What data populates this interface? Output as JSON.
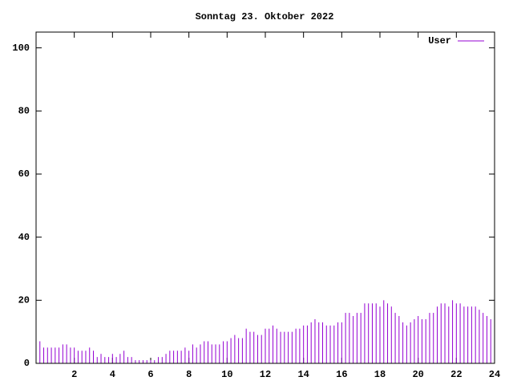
{
  "chart_data": {
    "type": "impulse",
    "title": "Sonntag 23. Oktober 2022",
    "x": [
      0,
      0.2,
      0.4,
      0.6,
      0.8,
      1,
      1.2,
      1.4,
      1.6,
      1.8,
      2,
      2.2,
      2.4,
      2.6,
      2.8,
      3,
      3.2,
      3.4,
      3.6,
      3.8,
      4,
      4.2,
      4.4,
      4.6,
      4.8,
      5,
      5.2,
      5.4,
      5.6,
      5.8,
      6,
      6.2,
      6.4,
      6.6,
      6.8,
      7,
      7.2,
      7.4,
      7.6,
      7.8,
      8,
      8.2,
      8.4,
      8.6,
      8.8,
      9,
      9.2,
      9.4,
      9.6,
      9.8,
      10,
      10.2,
      10.4,
      10.6,
      10.8,
      11,
      11.2,
      11.4,
      11.6,
      11.8,
      12,
      12.2,
      12.4,
      12.6,
      12.8,
      13,
      13.2,
      13.4,
      13.6,
      13.8,
      14,
      14.2,
      14.4,
      14.6,
      14.8,
      15,
      15.2,
      15.4,
      15.6,
      15.8,
      16,
      16.2,
      16.4,
      16.6,
      16.8,
      17,
      17.2,
      17.4,
      17.6,
      17.8,
      18,
      18.2,
      18.4,
      18.6,
      18.8,
      19,
      19.2,
      19.4,
      19.6,
      19.8,
      20,
      20.2,
      20.4,
      20.6,
      20.8,
      21,
      21.2,
      21.4,
      21.6,
      21.8,
      22,
      22.2,
      22.4,
      22.6,
      22.8,
      23,
      23.2,
      23.4,
      23.6,
      23.8
    ],
    "series": [
      {
        "name": "User",
        "color": "#9400d3",
        "values": [
          7,
          7,
          5,
          5,
          5,
          5,
          5,
          6,
          6,
          5,
          5,
          4,
          4,
          4,
          5,
          4,
          2,
          3,
          2,
          2,
          3,
          2,
          3,
          4,
          2,
          2,
          1,
          1,
          1,
          1,
          1,
          1,
          2,
          2,
          3,
          4,
          4,
          4,
          4,
          5,
          4,
          6,
          5,
          6,
          7,
          7,
          6,
          6,
          6,
          7,
          7,
          8,
          9,
          8,
          8,
          11,
          10,
          10,
          9,
          9,
          11,
          11,
          12,
          11,
          10,
          10,
          10,
          10,
          11,
          11,
          12,
          12,
          13,
          14,
          13,
          13,
          12,
          12,
          12,
          13,
          13,
          16,
          16,
          15,
          16,
          16,
          19,
          19,
          19,
          19,
          18,
          20,
          19,
          18,
          16,
          15,
          13,
          12,
          13,
          14,
          15,
          14,
          14,
          16,
          16,
          18,
          19,
          19,
          18,
          20,
          19,
          19,
          18,
          18,
          18,
          18,
          17,
          16,
          15,
          14
        ]
      }
    ],
    "xlim": [
      0,
      24
    ],
    "xticks": [
      2,
      4,
      6,
      8,
      10,
      12,
      14,
      16,
      18,
      20,
      22,
      24
    ],
    "ylim": [
      0,
      105
    ],
    "yticks": [
      0,
      20,
      40,
      60,
      80,
      100
    ],
    "grid": false,
    "legend": "top-right"
  }
}
